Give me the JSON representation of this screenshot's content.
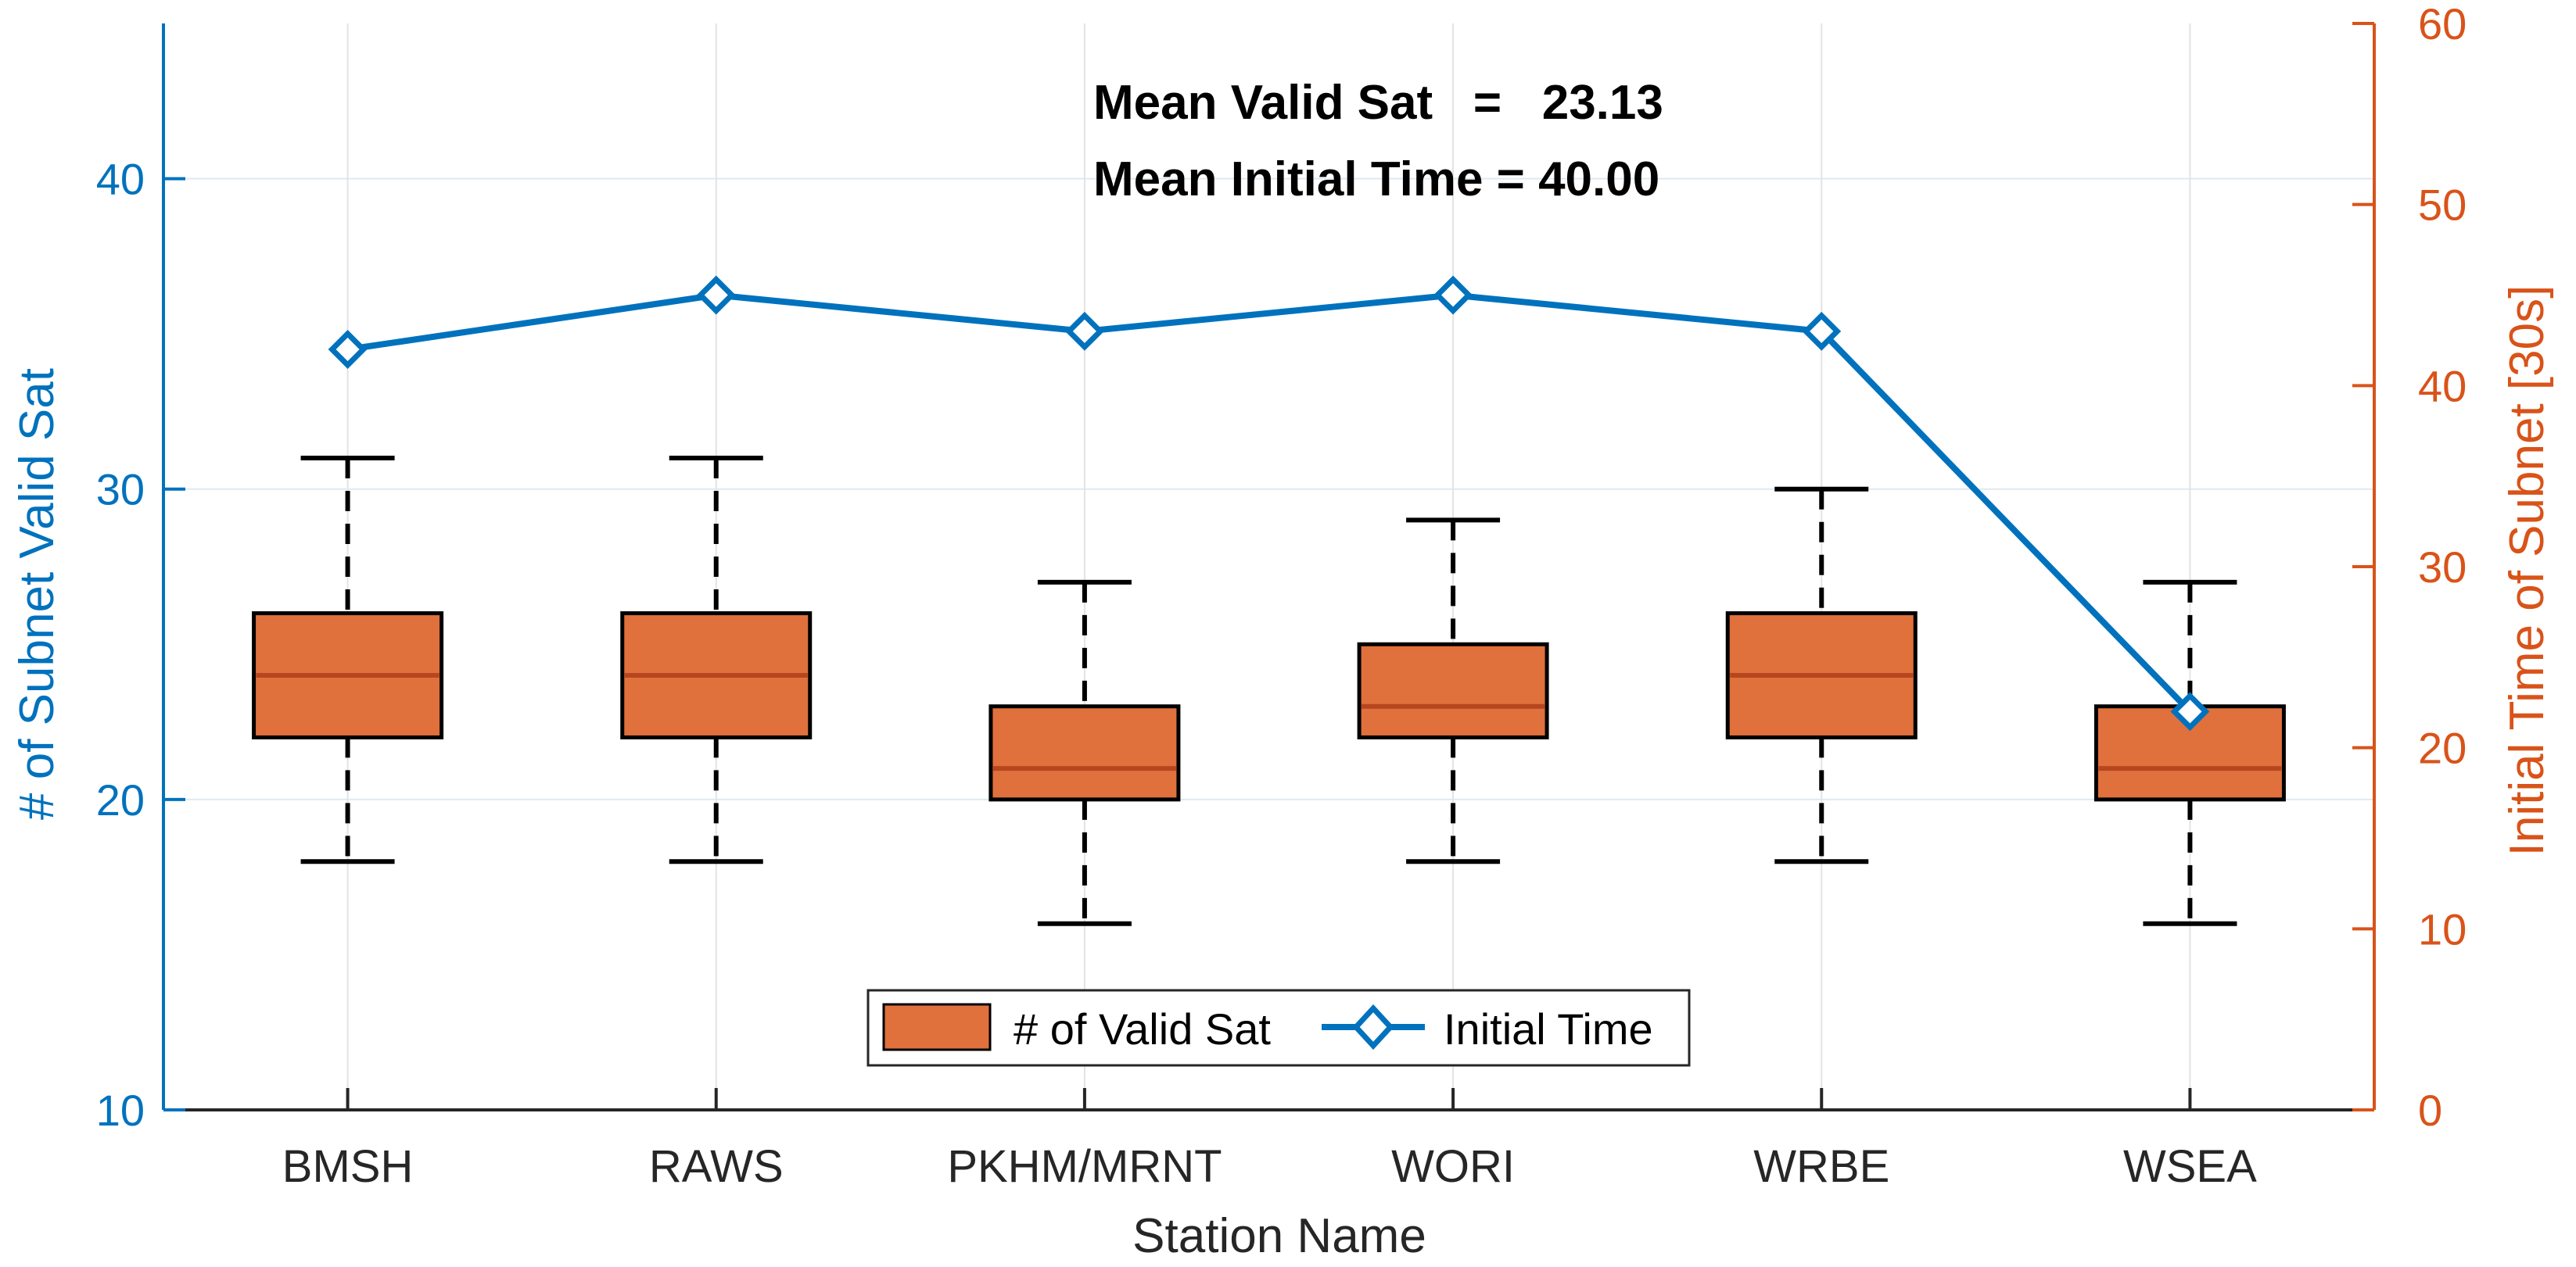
{
  "chart_data": {
    "type": "box+line",
    "xlabel": "Station Name",
    "ylabel_left": "# of Subnet Valid Sat",
    "ylabel_right": "Initial Time of Subnet [30s]",
    "ylim_left": [
      10,
      45
    ],
    "ylim_right": [
      0,
      60
    ],
    "yticks_left": [
      10,
      20,
      30,
      40
    ],
    "yticks_right": [
      0,
      10,
      20,
      30,
      40,
      50,
      60
    ],
    "categories": [
      "BMSH",
      "RAWS",
      "PKHM/MRNT",
      "WORI",
      "WRBE",
      "WSEA"
    ],
    "box_series": {
      "name": "# of Valid Sat",
      "color": "#e0703c",
      "median_color": "#b5461e",
      "boxes": [
        {
          "whisker_low": 18,
          "q1": 22,
          "median": 24,
          "q3": 26,
          "whisker_high": 31
        },
        {
          "whisker_low": 18,
          "q1": 22,
          "median": 24,
          "q3": 26,
          "whisker_high": 31
        },
        {
          "whisker_low": 16,
          "q1": 20,
          "median": 21,
          "q3": 23,
          "whisker_high": 27
        },
        {
          "whisker_low": 18,
          "q1": 22,
          "median": 23,
          "q3": 25,
          "whisker_high": 29
        },
        {
          "whisker_low": 18,
          "q1": 22,
          "median": 24,
          "q3": 26,
          "whisker_high": 30
        },
        {
          "whisker_low": 16,
          "q1": 20,
          "median": 21,
          "q3": 23,
          "whisker_high": 27
        }
      ]
    },
    "line_series": {
      "name": "Initial Time",
      "color": "#0072bd",
      "axis": "right",
      "values": [
        42,
        45,
        43,
        45,
        43,
        22
      ]
    },
    "annotations": [
      {
        "text": "Mean Valid Sat   =   23.13"
      },
      {
        "text": "Mean Initial Time = 40.00"
      }
    ],
    "legend_position": "bottom-center",
    "grid": true
  }
}
